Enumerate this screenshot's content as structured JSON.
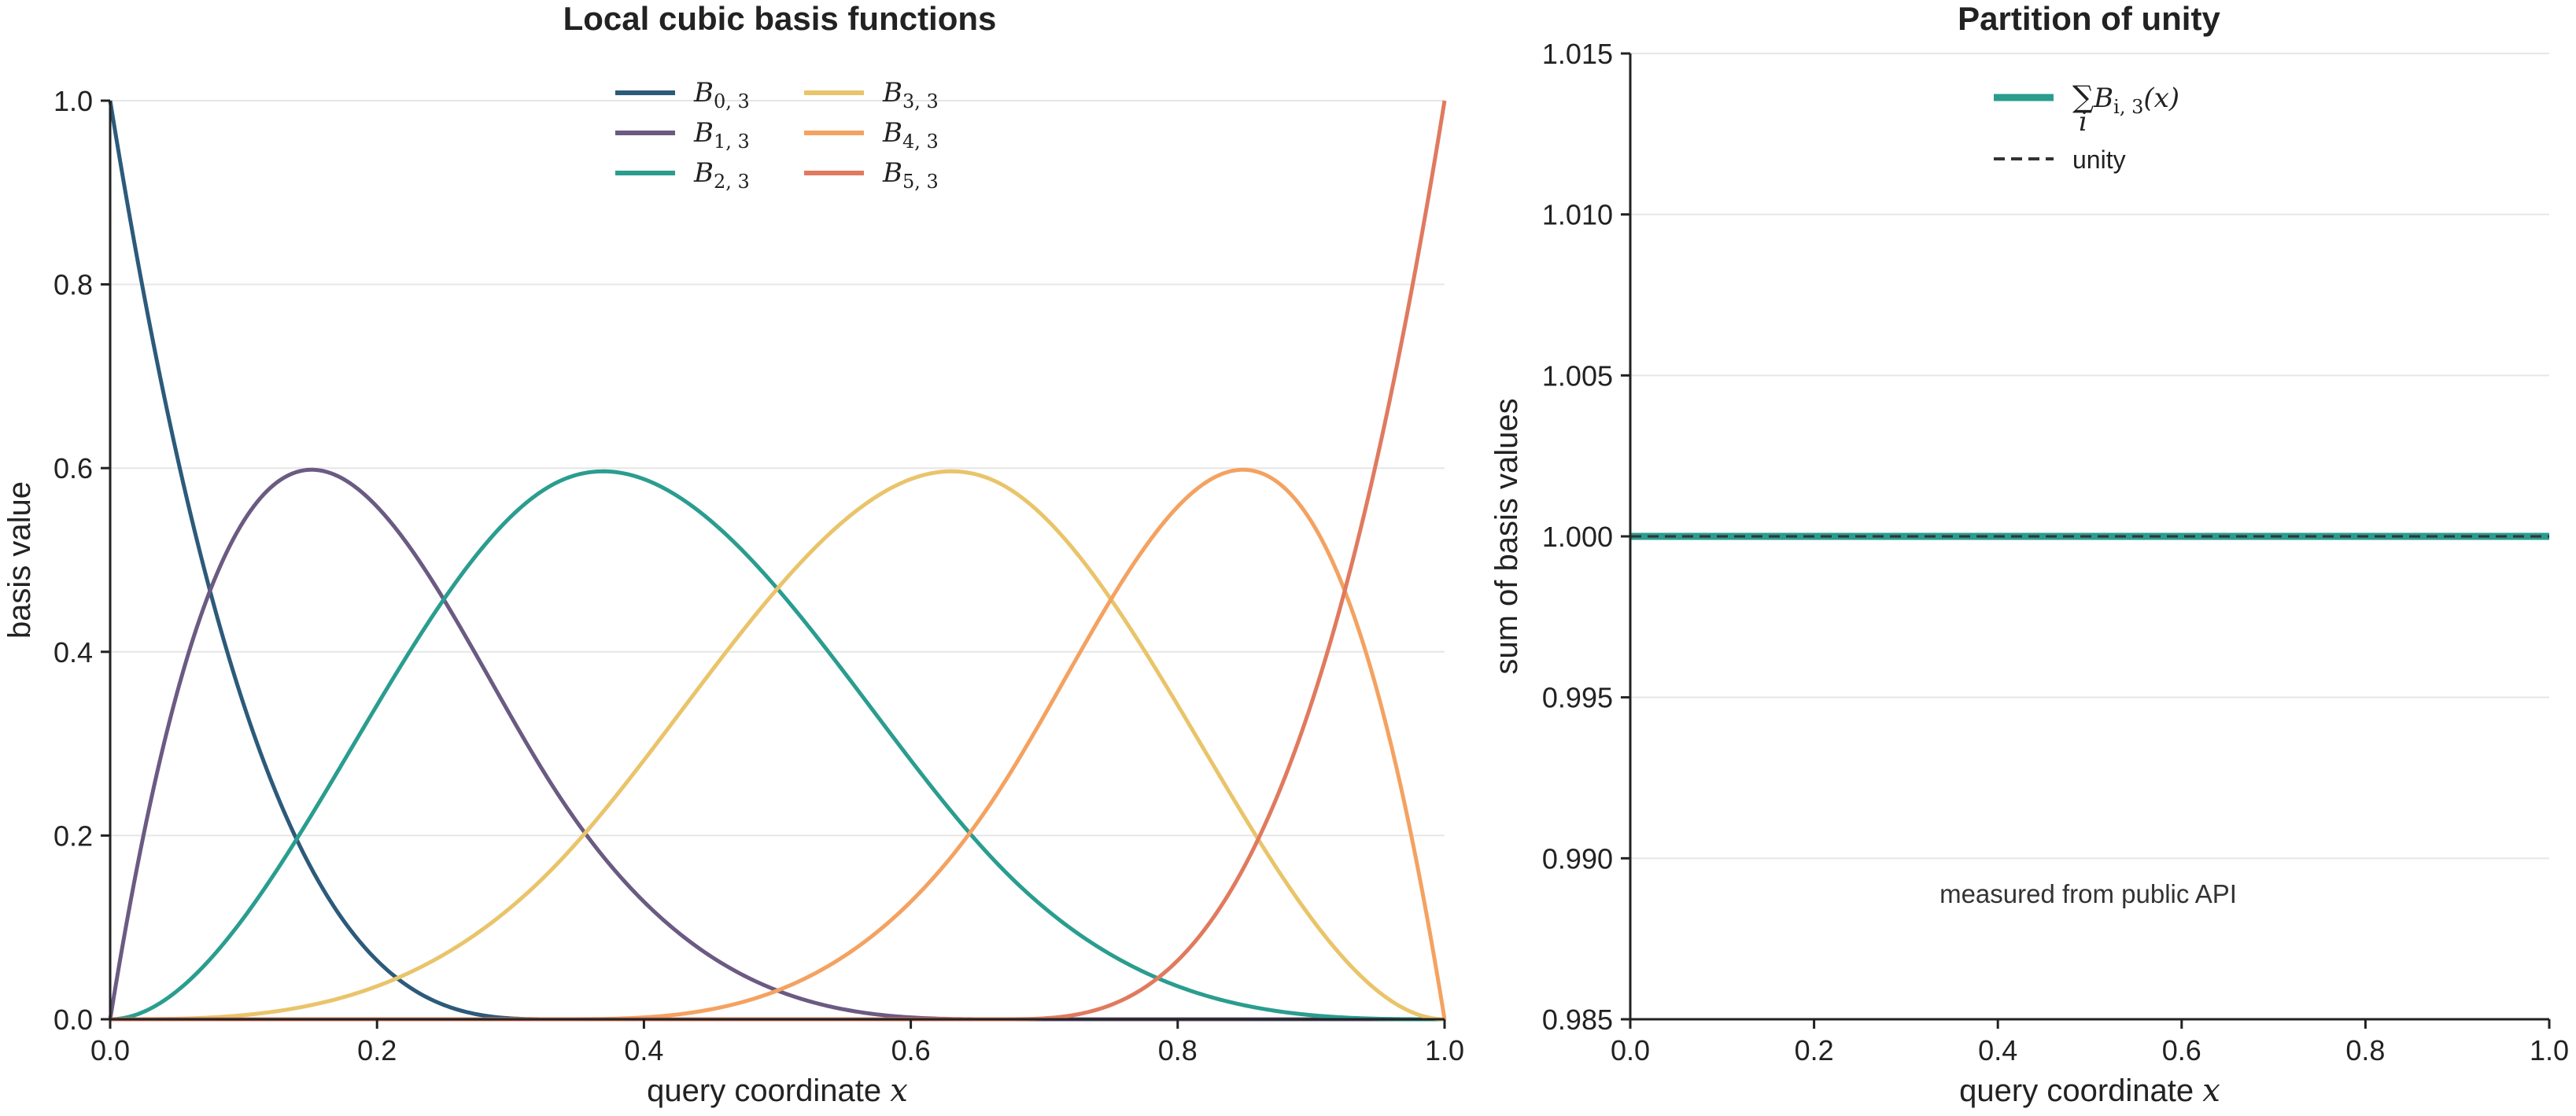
{
  "chart_data": [
    {
      "type": "line",
      "title": "Local cubic basis functions",
      "xlabel": "query coordinate",
      "xlabel_var": "x",
      "ylabel": "basis value",
      "xlim": [
        0.0,
        1.0
      ],
      "ylim": [
        0.0,
        1.0
      ],
      "xticks": [
        "0.0",
        "0.2",
        "0.4",
        "0.6",
        "0.8",
        "1.0"
      ],
      "yticks": [
        "0.0",
        "0.2",
        "0.4",
        "0.6",
        "0.8",
        "1.0"
      ],
      "grid": "horizontal",
      "legend_position": "top-center",
      "knots": [
        0,
        0,
        0,
        0,
        0.3333333,
        0.6666667,
        1,
        1,
        1,
        1
      ],
      "degree": 3,
      "x": [
        0.0,
        0.05,
        0.1,
        0.15,
        0.2,
        0.25,
        0.3,
        0.35,
        0.4,
        0.45,
        0.5,
        0.55,
        0.6,
        0.65,
        0.7,
        0.75,
        0.8,
        0.85,
        0.9,
        0.95,
        1.0
      ],
      "series": [
        {
          "name": "B_{0,3}",
          "label": "B",
          "sub": "0, 3",
          "color": "#2c5a7a",
          "values": [
            1.0,
            0.614,
            0.343,
            0.166,
            0.064,
            0.016,
            0.001,
            0.0,
            0.0,
            0.0,
            0.0,
            0.0,
            0.0,
            0.0,
            0.0,
            0.0,
            0.0,
            0.0,
            0.0,
            0.0,
            0.0
          ]
        },
        {
          "name": "B_{1,3}",
          "label": "B",
          "sub": "1, 3",
          "color": "#6b5a82",
          "values": [
            0.0,
            0.329,
            0.506,
            0.583,
            0.576,
            0.516,
            0.435,
            0.343,
            0.256,
            0.178,
            0.111,
            0.061,
            0.028,
            0.008,
            0.001,
            0.0,
            0.0,
            0.0,
            0.0,
            0.0,
            0.0
          ]
        },
        {
          "name": "B_{2,3}",
          "label": "B",
          "sub": "2, 3",
          "color": "#2a9d8f",
          "values": [
            0.0,
            0.054,
            0.141,
            0.234,
            0.323,
            0.417,
            0.495,
            0.56,
            0.597,
            0.587,
            0.545,
            0.478,
            0.4,
            0.317,
            0.235,
            0.161,
            0.1,
            0.051,
            0.02,
            0.004,
            0.0
          ]
        },
        {
          "name": "B_{3,3}",
          "label": "B",
          "sub": "3, 3",
          "color": "#e9c46a",
          "values": [
            0.0,
            0.002,
            0.009,
            0.017,
            0.037,
            0.052,
            0.068,
            0.097,
            0.147,
            0.23,
            0.344,
            0.458,
            0.56,
            0.608,
            0.595,
            0.522,
            0.415,
            0.285,
            0.155,
            0.049,
            0.0
          ]
        },
        {
          "name": "B_{4,3}",
          "label": "B",
          "sub": "4, 3",
          "color": "#f4a261",
          "values": [
            0.0,
            0.0,
            0.0,
            0.0,
            0.0,
            0.0,
            0.0,
            0.0,
            0.001,
            0.005,
            0.0,
            0.003,
            0.012,
            0.063,
            0.153,
            0.288,
            0.432,
            0.564,
            0.547,
            0.375,
            0.0
          ]
        },
        {
          "name": "B_{5,3}",
          "label": "B",
          "sub": "5, 3",
          "color": "#e07a5f",
          "values": [
            0.0,
            0.0,
            0.0,
            0.0,
            0.0,
            0.0,
            0.0,
            0.0,
            0.0,
            0.0,
            0.0,
            0.0,
            0.0,
            0.004,
            0.016,
            0.049,
            0.116,
            0.226,
            0.39,
            0.619,
            1.0
          ]
        }
      ]
    },
    {
      "type": "line",
      "title": "Partition of unity",
      "xlabel": "query coordinate",
      "xlabel_var": "x",
      "ylabel": "sum of basis values",
      "xlim": [
        0.0,
        1.0
      ],
      "ylim": [
        0.985,
        1.015
      ],
      "xticks": [
        "0.0",
        "0.2",
        "0.4",
        "0.6",
        "0.8",
        "1.0"
      ],
      "yticks": [
        "0.985",
        "0.990",
        "0.995",
        "1.000",
        "1.005",
        "1.010",
        "1.015"
      ],
      "grid": "horizontal",
      "legend_position": "top-center",
      "annotation": "measured from public API",
      "series": [
        {
          "name": "∑ B_{i,3}(x)",
          "sum_symbol": "∑",
          "sum_index": "i",
          "label": "B",
          "sub": "i, 3",
          "arg": "(x)",
          "color": "#2a9d8f",
          "style": "solid",
          "x": [
            0.0,
            1.0
          ],
          "values": [
            1.0,
            1.0
          ]
        },
        {
          "name": "unity",
          "label": "unity",
          "color": "#333333",
          "style": "dashed",
          "x": [
            0.0,
            1.0
          ],
          "values": [
            1.0,
            1.0
          ]
        }
      ]
    }
  ]
}
